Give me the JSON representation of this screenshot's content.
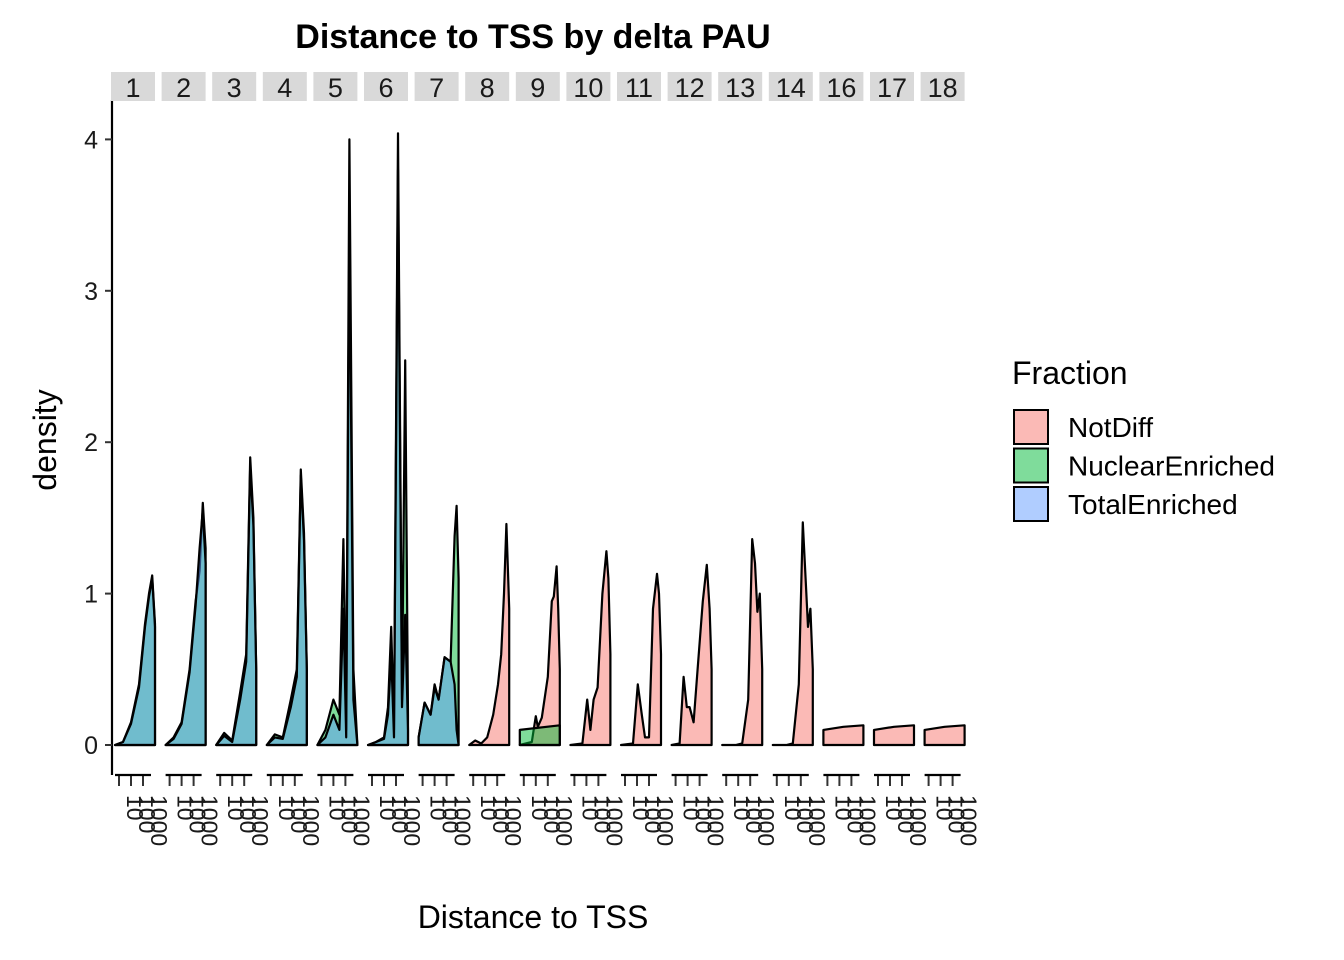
{
  "chart_data": {
    "type": "area",
    "title": "Distance to TSS by delta PAU",
    "xlabel": "Distance to TSS",
    "ylabel": "density",
    "ylim": [
      0,
      4.2
    ],
    "y_ticks": [
      "0",
      "1",
      "2",
      "3",
      "4"
    ],
    "x_tick_labels": [
      "10",
      "100",
      "1000"
    ],
    "grid": false,
    "legend": {
      "title": "Fraction",
      "position": "right",
      "entries": [
        {
          "name": "NotDiff",
          "color": "#F8766D"
        },
        {
          "name": "NuclearEnriched",
          "color": "#00BA38"
        },
        {
          "name": "TotalEnriched",
          "color": "#619CFF"
        }
      ]
    },
    "facets": [
      {
        "label": "1",
        "series": [
          {
            "name": "NuclearEnriched",
            "x": [
              0.0,
              0.2,
              0.4,
              0.6,
              0.75,
              0.85,
              0.93,
              1.0
            ],
            "y": [
              0,
              0.02,
              0.15,
              0.4,
              0.8,
              1.0,
              1.12,
              0.8
            ]
          },
          {
            "name": "TotalEnriched",
            "x": [
              0.0,
              0.2,
              0.4,
              0.6,
              0.75,
              0.85,
              0.93,
              1.0
            ],
            "y": [
              0,
              0.02,
              0.14,
              0.38,
              0.78,
              0.98,
              1.1,
              0.78
            ]
          }
        ]
      },
      {
        "label": "2",
        "series": [
          {
            "name": "NuclearEnriched",
            "x": [
              0.0,
              0.2,
              0.4,
              0.6,
              0.75,
              0.85,
              0.93,
              1.0
            ],
            "y": [
              0,
              0.05,
              0.15,
              0.5,
              0.95,
              1.15,
              1.6,
              1.3
            ]
          },
          {
            "name": "TotalEnriched",
            "x": [
              0.0,
              0.2,
              0.4,
              0.6,
              0.75,
              0.85,
              0.93,
              1.0
            ],
            "y": [
              0,
              0.04,
              0.14,
              0.48,
              0.92,
              1.3,
              1.55,
              1.2
            ]
          }
        ]
      },
      {
        "label": "3",
        "series": [
          {
            "name": "NuclearEnriched",
            "x": [
              0.0,
              0.2,
              0.4,
              0.6,
              0.75,
              0.85,
              0.93,
              1.0
            ],
            "y": [
              0,
              0.08,
              0.03,
              0.35,
              0.6,
              1.9,
              1.5,
              0.5
            ]
          },
          {
            "name": "TotalEnriched",
            "x": [
              0.0,
              0.2,
              0.4,
              0.6,
              0.75,
              0.85,
              0.93,
              1.0
            ],
            "y": [
              0,
              0.06,
              0.02,
              0.3,
              0.55,
              1.85,
              1.45,
              0.5
            ]
          }
        ]
      },
      {
        "label": "4",
        "series": [
          {
            "name": "NuclearEnriched",
            "x": [
              0.0,
              0.2,
              0.4,
              0.6,
              0.75,
              0.85,
              0.93,
              1.0
            ],
            "y": [
              0,
              0.07,
              0.05,
              0.3,
              0.5,
              1.82,
              1.4,
              0.5
            ]
          },
          {
            "name": "TotalEnriched",
            "x": [
              0.0,
              0.2,
              0.4,
              0.6,
              0.75,
              0.85,
              0.93,
              1.0
            ],
            "y": [
              0,
              0.05,
              0.04,
              0.25,
              0.45,
              1.78,
              1.35,
              0.5
            ]
          }
        ]
      },
      {
        "label": "5",
        "series": [
          {
            "name": "NuclearEnriched",
            "x": [
              0.0,
              0.2,
              0.4,
              0.55,
              0.65,
              0.72,
              0.8,
              0.9,
              1.0
            ],
            "y": [
              0,
              0.1,
              0.3,
              0.2,
              1.36,
              0.1,
              4.0,
              0.5,
              0
            ]
          },
          {
            "name": "TotalEnriched",
            "x": [
              0.0,
              0.2,
              0.4,
              0.55,
              0.65,
              0.72,
              0.8,
              0.9,
              1.0
            ],
            "y": [
              0,
              0.05,
              0.2,
              0.1,
              0.9,
              0.05,
              3.5,
              0.3,
              0
            ]
          }
        ]
      },
      {
        "label": "6",
        "series": [
          {
            "name": "NuclearEnriched",
            "x": [
              0.0,
              0.2,
              0.4,
              0.5,
              0.58,
              0.65,
              0.75,
              0.85,
              0.93,
              1.0
            ],
            "y": [
              0,
              0.02,
              0.05,
              0.25,
              0.78,
              0.1,
              4.04,
              0.3,
              2.54,
              0.2
            ]
          },
          {
            "name": "TotalEnriched",
            "x": [
              0.0,
              0.2,
              0.4,
              0.5,
              0.58,
              0.65,
              0.75,
              0.85,
              0.93,
              1.0
            ],
            "y": [
              0,
              0.02,
              0.04,
              0.2,
              0.6,
              0.05,
              3.8,
              0.25,
              0.86,
              0.1
            ]
          }
        ]
      },
      {
        "label": "7",
        "series": [
          {
            "name": "NuclearEnriched",
            "x": [
              0.0,
              0.15,
              0.3,
              0.4,
              0.5,
              0.65,
              0.8,
              0.9,
              0.95,
              1.0
            ],
            "y": [
              0.05,
              0.28,
              0.2,
              0.4,
              0.3,
              0.58,
              0.55,
              1.38,
              1.58,
              1.1
            ]
          },
          {
            "name": "TotalEnriched",
            "x": [
              0.0,
              0.15,
              0.3,
              0.4,
              0.5,
              0.65,
              0.8,
              0.9,
              0.95,
              1.0
            ],
            "y": [
              0.05,
              0.28,
              0.2,
              0.38,
              0.3,
              0.58,
              0.55,
              0.4,
              0.1,
              0.0
            ]
          }
        ]
      },
      {
        "label": "8",
        "series": [
          {
            "name": "NotDiff",
            "x": [
              0.0,
              0.15,
              0.3,
              0.45,
              0.6,
              0.72,
              0.8,
              0.87,
              0.93,
              1.0
            ],
            "y": [
              0,
              0.03,
              0.01,
              0.05,
              0.2,
              0.4,
              0.6,
              1.0,
              1.46,
              0.9
            ]
          }
        ]
      },
      {
        "label": "9",
        "series": [
          {
            "name": "NuclearEnriched",
            "x": [
              0.0,
              1.0
            ],
            "y": [
              0.1,
              0.13
            ]
          },
          {
            "name": "NotDiff",
            "x": [
              0.0,
              0.3,
              0.4,
              0.45,
              0.55,
              0.7,
              0.8,
              0.85,
              0.92,
              0.96,
              1.0
            ],
            "y": [
              0,
              0.02,
              0.19,
              0.12,
              0.18,
              0.45,
              0.95,
              0.98,
              1.18,
              0.9,
              0.5
            ]
          }
        ]
      },
      {
        "label": "10",
        "series": [
          {
            "name": "NotDiff",
            "x": [
              0.0,
              0.3,
              0.42,
              0.5,
              0.58,
              0.68,
              0.8,
              0.9,
              0.95,
              1.0
            ],
            "y": [
              0,
              0.01,
              0.3,
              0.1,
              0.3,
              0.38,
              1.0,
              1.28,
              1.1,
              0.6
            ]
          }
        ]
      },
      {
        "label": "11",
        "series": [
          {
            "name": "NotDiff",
            "x": [
              0.0,
              0.3,
              0.42,
              0.52,
              0.6,
              0.7,
              0.8,
              0.9,
              0.95,
              1.0
            ],
            "y": [
              0,
              0.01,
              0.4,
              0.2,
              0.05,
              0.05,
              0.9,
              1.13,
              1.0,
              0.6
            ]
          }
        ]
      },
      {
        "label": "12",
        "series": [
          {
            "name": "NotDiff",
            "x": [
              0.0,
              0.2,
              0.3,
              0.38,
              0.45,
              0.55,
              0.65,
              0.78,
              0.88,
              0.95,
              1.0
            ],
            "y": [
              0,
              0.01,
              0.45,
              0.25,
              0.25,
              0.15,
              0.5,
              0.95,
              1.19,
              0.9,
              0.5
            ]
          }
        ]
      },
      {
        "label": "13",
        "series": [
          {
            "name": "NotDiff",
            "x": [
              0.0,
              0.35,
              0.5,
              0.65,
              0.75,
              0.82,
              0.88,
              0.94,
              1.0
            ],
            "y": [
              0,
              0,
              0.01,
              0.3,
              1.36,
              1.2,
              0.88,
              1.0,
              0.5
            ]
          }
        ]
      },
      {
        "label": "14",
        "series": [
          {
            "name": "NotDiff",
            "x": [
              0.0,
              0.35,
              0.5,
              0.65,
              0.75,
              0.82,
              0.88,
              0.94,
              1.0
            ],
            "y": [
              0,
              0,
              0.01,
              0.4,
              1.47,
              1.1,
              0.78,
              0.9,
              0.5
            ]
          }
        ]
      },
      {
        "label": "16",
        "series": [
          {
            "name": "NotDiff",
            "x": [
              0.0,
              0.5,
              1.0
            ],
            "y": [
              0.1,
              0.12,
              0.13
            ]
          }
        ]
      },
      {
        "label": "17",
        "series": [
          {
            "name": "NotDiff",
            "x": [
              0.0,
              0.5,
              1.0
            ],
            "y": [
              0.1,
              0.12,
              0.13
            ]
          }
        ]
      },
      {
        "label": "18",
        "series": [
          {
            "name": "NotDiff",
            "x": [
              0.0,
              0.5,
              1.0
            ],
            "y": [
              0.1,
              0.12,
              0.13
            ]
          }
        ]
      }
    ]
  }
}
